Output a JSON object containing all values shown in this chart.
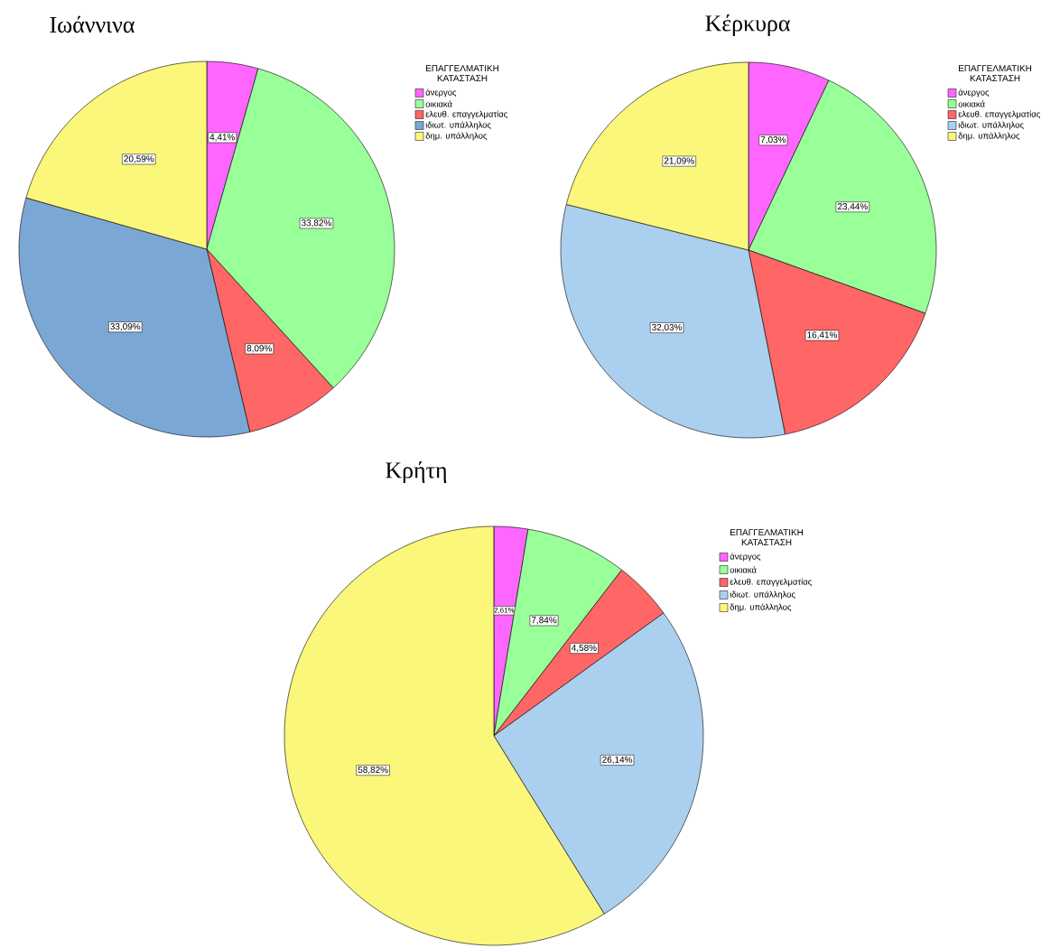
{
  "chart_data": [
    {
      "type": "pie",
      "title": "Ιωάννινα",
      "legend_title": "ΕΠΑΓΓΕΛΜΑΤΙΚΗ ΚΑΤΑΣΤΑΣΗ",
      "legend": "top right",
      "categories": [
        "άνεργος",
        "οικιακά",
        "ελευθ. επαγγελματίας",
        "ιδιωτ. υπάλληλος",
        "δημ. υπάλληλος"
      ],
      "values": [
        4.41,
        33.82,
        8.09,
        33.09,
        20.59
      ],
      "value_labels": [
        "4,41%",
        "33,82%",
        "8,09%",
        "33,09%",
        "20,59%"
      ],
      "colors": [
        "#ff66ff",
        "#99ff99",
        "#ff6666",
        "#7ba7d4",
        "#faf77a"
      ]
    },
    {
      "type": "pie",
      "title": "Κέρκυρα",
      "legend_title": "ΕΠΑΓΓΕΛΜΑΤΙΚΗ ΚΑΤΑΣΤΑΣΗ",
      "legend": "top right",
      "categories": [
        "άνεργος",
        "οικιακά",
        "ελευθ. επαγγελματίας",
        "ιδιωτ. υπάλληλος",
        "δημ. υπάλληλος"
      ],
      "values": [
        7.03,
        23.44,
        16.41,
        32.03,
        21.09
      ],
      "value_labels": [
        "7,03%",
        "23,44%",
        "16,41%",
        "32,03%",
        "21,09%"
      ],
      "colors": [
        "#ff66ff",
        "#99ff99",
        "#ff6666",
        "#abcfee",
        "#faf77a"
      ]
    },
    {
      "type": "pie",
      "title": "Κρήτη",
      "legend_title": "ΕΠΑΓΓΕΛΜΑΤΙΚΗ ΚΑΤΑΣΤΑΣΗ",
      "legend": "top right",
      "categories": [
        "άνεργος",
        "οικιακά",
        "ελευθ. επαγγελματίας",
        "ιδιωτ. υπάλληλος",
        "δημ. υπάλληλος"
      ],
      "values": [
        2.61,
        7.84,
        4.58,
        26.14,
        58.82
      ],
      "value_labels": [
        "2,61%",
        "7,84%",
        "4,58%",
        "26,14%",
        "58,82%"
      ],
      "colors": [
        "#ff66ff",
        "#99ff99",
        "#ff6666",
        "#abcfee",
        "#faf77a"
      ]
    }
  ]
}
